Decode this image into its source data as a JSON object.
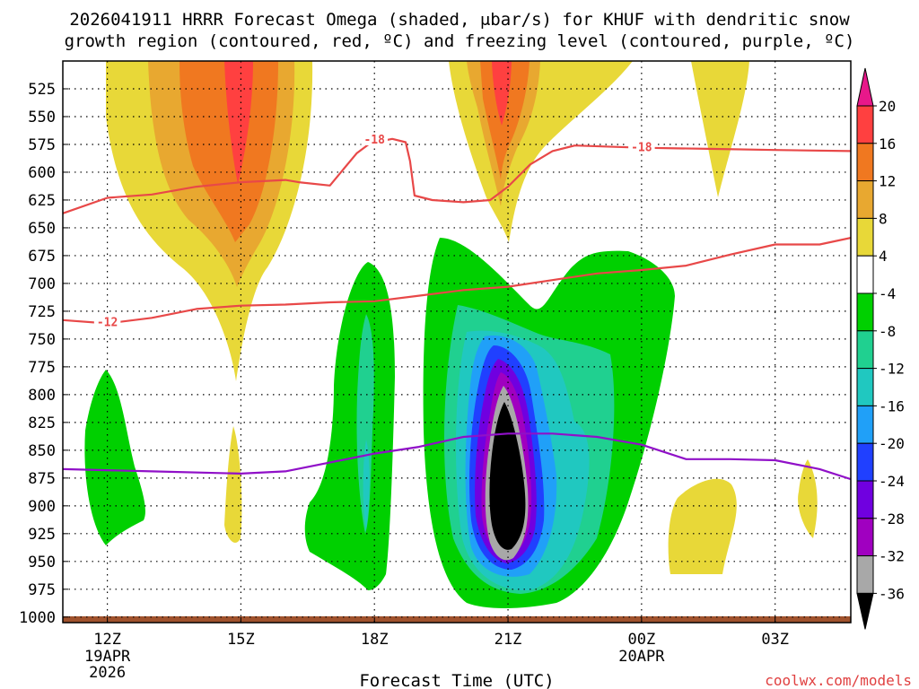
{
  "chart_data": {
    "type": "heatmap",
    "title_line1": "2026041911 HRRR Forecast Omega (shaded, μbar/s) for KHUF with dendritic snow",
    "title_line2": "growth region (contoured, red, ºC) and freezing level (contoured, purple, ºC)",
    "xlabel": "Forecast Time (UTC)",
    "credit": "coolwx.com/models",
    "y_axis": {
      "unit": "hPa",
      "range": [
        500,
        1005
      ],
      "ticks": [
        525,
        550,
        575,
        600,
        625,
        650,
        675,
        700,
        725,
        750,
        775,
        800,
        825,
        850,
        875,
        900,
        925,
        950,
        975,
        1000
      ]
    },
    "x_axis": {
      "range_hours": [
        11,
        28.7
      ],
      "ticks": [
        {
          "hour": 12,
          "label": "12Z",
          "date": "19APR",
          "year": "2026"
        },
        {
          "hour": 15,
          "label": "15Z",
          "date": "",
          "year": ""
        },
        {
          "hour": 18,
          "label": "18Z",
          "date": "",
          "year": ""
        },
        {
          "hour": 21,
          "label": "21Z",
          "date": "",
          "year": ""
        },
        {
          "hour": 24,
          "label": "00Z",
          "date": "20APR",
          "year": ""
        },
        {
          "hour": 27,
          "label": "03Z",
          "date": "",
          "year": ""
        }
      ]
    },
    "colorbar": {
      "labels": [
        "20",
        "16",
        "12",
        "8",
        "4",
        "-4",
        "-8",
        "-12",
        "-16",
        "-20",
        "-24",
        "-28",
        "-32",
        "-36"
      ],
      "bands": [
        {
          "lo": 16,
          "hi": 20,
          "color": "#ff4040"
        },
        {
          "lo": 12,
          "hi": 16,
          "color": "#f07820"
        },
        {
          "lo": 8,
          "hi": 12,
          "color": "#e8a830"
        },
        {
          "lo": 4,
          "hi": 8,
          "color": "#e8d838"
        },
        {
          "lo": -4,
          "hi": 4,
          "color": "#ffffff"
        },
        {
          "lo": -8,
          "hi": -4,
          "color": "#00d000"
        },
        {
          "lo": -12,
          "hi": -8,
          "color": "#20d090"
        },
        {
          "lo": -16,
          "hi": -12,
          "color": "#20c8c0"
        },
        {
          "lo": -20,
          "hi": -16,
          "color": "#20a0f8"
        },
        {
          "lo": -24,
          "hi": -20,
          "color": "#2040ff"
        },
        {
          "lo": -28,
          "hi": -24,
          "color": "#7000e0"
        },
        {
          "lo": -32,
          "hi": -28,
          "color": "#a000c0"
        },
        {
          "lo": -36,
          "hi": -32,
          "color": "#a8a8a8"
        }
      ],
      "top_arrow_color": "#e8188a",
      "bottom_arrow_color": "#000000"
    },
    "contours": [
      {
        "name": "-18 C isotherm",
        "color": "#e84848",
        "label": "-18",
        "label_points": [
          [
            18.0,
            571
          ],
          [
            24.0,
            578
          ]
        ],
        "points": [
          [
            11.0,
            637
          ],
          [
            12.0,
            623
          ],
          [
            13.0,
            620
          ],
          [
            14.0,
            613
          ],
          [
            15.0,
            609
          ],
          [
            16.0,
            607
          ],
          [
            16.3,
            609
          ],
          [
            17.0,
            612
          ],
          [
            17.6,
            583
          ],
          [
            17.9,
            574
          ],
          [
            18.4,
            570
          ],
          [
            18.7,
            573
          ],
          [
            18.8,
            590
          ],
          [
            18.9,
            621
          ],
          [
            19.3,
            625
          ],
          [
            20.0,
            627
          ],
          [
            20.6,
            625
          ],
          [
            21.0,
            613
          ],
          [
            21.5,
            593
          ],
          [
            22.0,
            581
          ],
          [
            22.5,
            576
          ],
          [
            24.0,
            578
          ],
          [
            25.5,
            579
          ],
          [
            27.0,
            580
          ],
          [
            28.7,
            581
          ]
        ]
      },
      {
        "name": "-12 C isotherm",
        "color": "#e84848",
        "label": "-12",
        "label_points": [
          [
            12.0,
            735
          ]
        ],
        "points": [
          [
            11.0,
            733
          ],
          [
            12.0,
            736
          ],
          [
            13.0,
            731
          ],
          [
            14.0,
            723
          ],
          [
            15.0,
            720
          ],
          [
            16.0,
            719
          ],
          [
            17.0,
            717
          ],
          [
            18.0,
            716
          ],
          [
            19.0,
            711
          ],
          [
            20.0,
            706
          ],
          [
            21.0,
            703
          ],
          [
            22.0,
            697
          ],
          [
            23.0,
            691
          ],
          [
            24.0,
            688
          ],
          [
            25.0,
            684
          ],
          [
            26.0,
            674
          ],
          [
            27.0,
            665
          ],
          [
            28.0,
            665
          ],
          [
            28.7,
            659
          ]
        ]
      },
      {
        "name": "freezing level",
        "color": "#9010c8",
        "points": [
          [
            11.0,
            867
          ],
          [
            13.0,
            869
          ],
          [
            15.0,
            871
          ],
          [
            16.0,
            869
          ],
          [
            18.0,
            853
          ],
          [
            19.0,
            847
          ],
          [
            20.0,
            838
          ],
          [
            21.0,
            835
          ],
          [
            22.0,
            835
          ],
          [
            23.0,
            838
          ],
          [
            24.0,
            845
          ],
          [
            25.0,
            858
          ],
          [
            26.0,
            858
          ],
          [
            27.0,
            859
          ],
          [
            28.0,
            867
          ],
          [
            28.7,
            876
          ]
        ]
      }
    ]
  }
}
